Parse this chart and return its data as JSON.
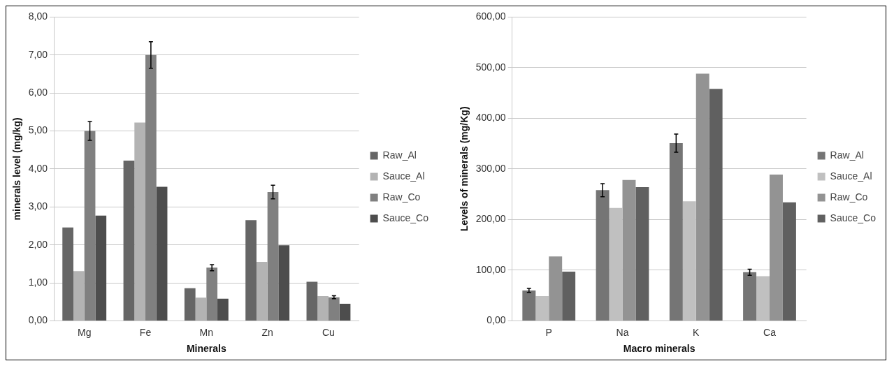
{
  "chart_data": [
    {
      "type": "bar",
      "xlabel": "Minerals",
      "ylabel": "minerals level (mg/kg)",
      "categories": [
        "Mg",
        "Fe",
        "Mn",
        "Zn",
        "Cu"
      ],
      "series": [
        {
          "name": "Raw_Al",
          "color": "#666666",
          "values": [
            2.46,
            4.22,
            0.86,
            2.65,
            1.03
          ]
        },
        {
          "name": "Sauce_Al",
          "color": "#b3b3b3",
          "values": [
            1.31,
            5.22,
            0.61,
            1.55,
            0.65
          ]
        },
        {
          "name": "Raw_Co",
          "color": "#808080",
          "values": [
            5.0,
            7.0,
            1.4,
            3.39,
            0.62
          ],
          "errors": [
            0.25,
            0.35,
            0.08,
            0.18,
            0.04
          ]
        },
        {
          "name": "Sauce_Co",
          "color": "#4d4d4d",
          "values": [
            2.77,
            3.53,
            0.58,
            1.99,
            0.45
          ]
        }
      ],
      "ylim": [
        0,
        8
      ],
      "yticks": [
        {
          "value": 0,
          "label": "0,00"
        },
        {
          "value": 1,
          "label": "1,00"
        },
        {
          "value": 2,
          "label": "2,00"
        },
        {
          "value": 3,
          "label": "3,00"
        },
        {
          "value": 4,
          "label": "4,00"
        },
        {
          "value": 5,
          "label": "5,00"
        },
        {
          "value": 6,
          "label": "6,00"
        },
        {
          "value": 7,
          "label": "7,00"
        },
        {
          "value": 8,
          "label": "8,00"
        }
      ],
      "grid": "y",
      "legend": "right"
    },
    {
      "type": "bar",
      "xlabel": "Macro minerals",
      "ylabel": "Levels of minerals (mg/Kg)",
      "categories": [
        "P",
        "Na",
        "K",
        "Ca"
      ],
      "series": [
        {
          "name": "Raw_Al",
          "color": "#757575",
          "values": [
            60,
            258,
            351,
            96
          ],
          "errors": [
            4,
            13,
            18,
            6
          ]
        },
        {
          "name": "Sauce_Al",
          "color": "#c0c0c0",
          "values": [
            49,
            223,
            236,
            88
          ]
        },
        {
          "name": "Raw_Co",
          "color": "#939393",
          "values": [
            127,
            278,
            488,
            289
          ]
        },
        {
          "name": "Sauce_Co",
          "color": "#606060",
          "values": [
            97,
            264,
            458,
            234
          ]
        }
      ],
      "ylim": [
        0,
        600
      ],
      "yticks": [
        {
          "value": 0,
          "label": "0,00"
        },
        {
          "value": 100,
          "label": "100,00"
        },
        {
          "value": 200,
          "label": "200,00"
        },
        {
          "value": 300,
          "label": "300,00"
        },
        {
          "value": 400,
          "label": "400,00"
        },
        {
          "value": 500,
          "label": "500,00"
        },
        {
          "value": 600,
          "label": "600,00"
        }
      ],
      "grid": "y",
      "legend": "right"
    }
  ]
}
